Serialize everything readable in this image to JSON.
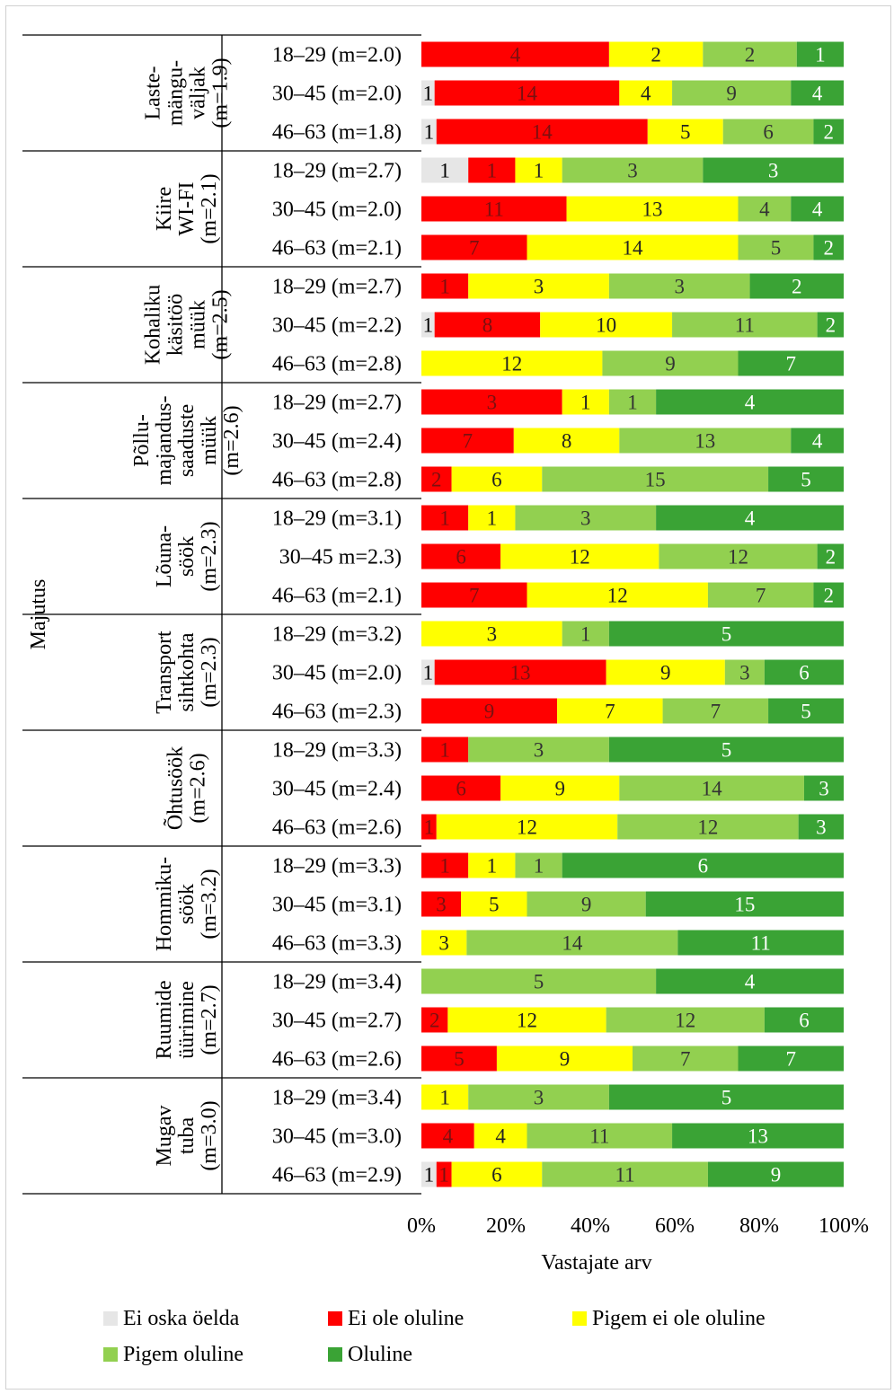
{
  "chart_data": {
    "type": "bar",
    "orientation": "horizontal",
    "stacked": "100%",
    "xlabel": "Vastajate arv",
    "ylabel": "Majutus",
    "xlim": [
      0,
      100
    ],
    "xticks": [
      "0%",
      "20%",
      "40%",
      "60%",
      "80%",
      "100%"
    ],
    "grid": false,
    "legend_position": "bottom",
    "series": [
      {
        "name": "Ei oska öelda",
        "color": "#e6e6e6"
      },
      {
        "name": "Ei ole oluline",
        "color": "#ff0000"
      },
      {
        "name": "Pigem ei ole oluline",
        "color": "#ffff00"
      },
      {
        "name": "Pigem oluline",
        "color": "#92d050"
      },
      {
        "name": "Oluline",
        "color": "#3aa335"
      }
    ],
    "groups": [
      {
        "lines": [
          "Laste-",
          "mängu-",
          "väljak",
          "(m=1.9)"
        ],
        "rows": [
          {
            "label": "18–29 (m=2.0)",
            "values": [
              0,
              4,
              2,
              2,
              1
            ]
          },
          {
            "label": "30–45 (m=2.0)",
            "values": [
              1,
              14,
              4,
              9,
              4
            ]
          },
          {
            "label": "46–63 (m=1.8)",
            "values": [
              1,
              14,
              5,
              6,
              2
            ]
          }
        ]
      },
      {
        "lines": [
          "Kiire",
          "WI-FI",
          "(m=2.1)"
        ],
        "rows": [
          {
            "label": "18–29 (m=2.7)",
            "values": [
              1,
              1,
              1,
              3,
              3
            ]
          },
          {
            "label": "30–45 (m=2.0)",
            "values": [
              0,
              11,
              13,
              4,
              4
            ]
          },
          {
            "label": "46–63 (m=2.1)",
            "values": [
              0,
              7,
              14,
              5,
              2
            ]
          }
        ]
      },
      {
        "lines": [
          "Kohaliku",
          "käsitöö",
          "müük",
          "(m=2.5)"
        ],
        "rows": [
          {
            "label": "18–29 (m=2.7)",
            "values": [
              0,
              1,
              3,
              3,
              2
            ]
          },
          {
            "label": "30–45 (m=2.2)",
            "values": [
              1,
              8,
              10,
              11,
              2
            ]
          },
          {
            "label": "46–63 (m=2.8)",
            "values": [
              0,
              0,
              12,
              9,
              7
            ]
          }
        ]
      },
      {
        "lines": [
          "Põllu-",
          "majandus-",
          "saaduste",
          "müük",
          "(m=2.6)"
        ],
        "rows": [
          {
            "label": "18–29 (m=2.7)",
            "values": [
              0,
              3,
              1,
              1,
              4
            ]
          },
          {
            "label": "30–45 (m=2.4)",
            "values": [
              0,
              7,
              8,
              13,
              4
            ]
          },
          {
            "label": "46–63 (m=2.8)",
            "values": [
              0,
              2,
              6,
              15,
              5
            ]
          }
        ]
      },
      {
        "lines": [
          "Lõuna-",
          "söök",
          "(m=2.3)"
        ],
        "rows": [
          {
            "label": "18–29 (m=3.1)",
            "values": [
              0,
              1,
              1,
              3,
              4
            ]
          },
          {
            "label": "30–45 m=2.3)",
            "values": [
              0,
              6,
              12,
              12,
              2
            ]
          },
          {
            "label": "46–63 (m=2.1)",
            "values": [
              0,
              7,
              12,
              7,
              2
            ]
          }
        ]
      },
      {
        "lines": [
          "Transport",
          "sihtkohta",
          "(m=2.3)"
        ],
        "rows": [
          {
            "label": "18–29 (m=3.2)",
            "values": [
              0,
              0,
              3,
              1,
              5
            ]
          },
          {
            "label": "30–45 (m=2.0)",
            "values": [
              1,
              13,
              9,
              3,
              6
            ]
          },
          {
            "label": "46–63 (m=2.3)",
            "values": [
              0,
              9,
              7,
              7,
              5
            ]
          }
        ]
      },
      {
        "lines": [
          "Õhtusöök",
          "(m=2.6)"
        ],
        "rows": [
          {
            "label": "18–29 (m=3.3)",
            "values": [
              0,
              1,
              0,
              3,
              5
            ]
          },
          {
            "label": "30–45 (m=2.4)",
            "values": [
              0,
              6,
              9,
              14,
              3
            ]
          },
          {
            "label": "46–63 (m=2.6)",
            "values": [
              0,
              1,
              12,
              12,
              3
            ]
          }
        ]
      },
      {
        "lines": [
          "Hommiku-",
          "söök",
          "(m=3.2)"
        ],
        "rows": [
          {
            "label": "18–29 (m=3.3)",
            "values": [
              0,
              1,
              1,
              1,
              6
            ]
          },
          {
            "label": "30–45 (m=3.1)",
            "values": [
              0,
              3,
              5,
              9,
              15
            ]
          },
          {
            "label": "46–63 (m=3.3)",
            "values": [
              0,
              0,
              3,
              14,
              11
            ]
          }
        ]
      },
      {
        "lines": [
          "Ruumide",
          "üürimine",
          "(m=2.7)"
        ],
        "rows": [
          {
            "label": "18–29 (m=3.4)",
            "values": [
              0,
              0,
              0,
              5,
              4
            ]
          },
          {
            "label": "30–45 (m=2.7)",
            "values": [
              0,
              2,
              12,
              12,
              6
            ]
          },
          {
            "label": "46–63 (m=2.6)",
            "values": [
              0,
              5,
              9,
              7,
              7
            ]
          }
        ]
      },
      {
        "lines": [
          "Mugav",
          "tuba",
          "(m=3.0)"
        ],
        "rows": [
          {
            "label": "18–29 (m=3.4)",
            "values": [
              0,
              0,
              1,
              3,
              5
            ]
          },
          {
            "label": "30–45 (m=3.0)",
            "values": [
              0,
              4,
              4,
              11,
              13
            ]
          },
          {
            "label": "46–63 (m=2.9)",
            "values": [
              1,
              1,
              6,
              11,
              9
            ]
          }
        ]
      }
    ]
  }
}
